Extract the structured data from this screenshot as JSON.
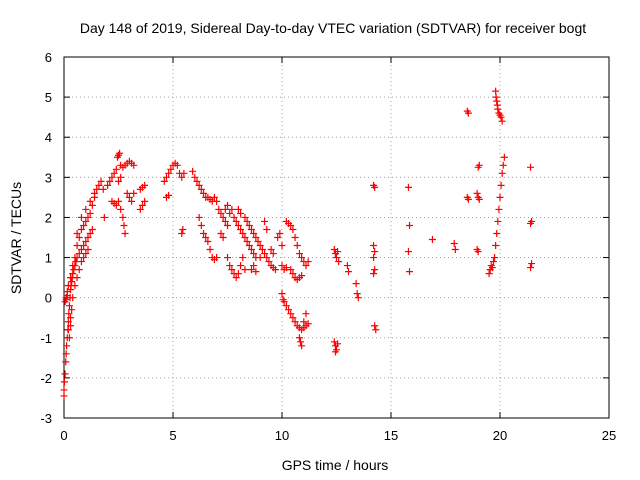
{
  "chart_data": {
    "type": "scatter",
    "title": "Day 148 of 2019, Sidereal Day-to-day VTEC variation (SDTVAR) for receiver bogt",
    "xlabel": "GPS time / hours",
    "ylabel": "SDTVAR / TECUs",
    "xlim": [
      0,
      25
    ],
    "ylim": [
      -3,
      6
    ],
    "xticks": [
      "0",
      "5",
      "10",
      "15",
      "20",
      "25"
    ],
    "yticks": [
      "-3",
      "-2",
      "-1",
      "0",
      "1",
      "2",
      "3",
      "4",
      "5",
      "6"
    ],
    "grid": true,
    "marker": "+",
    "colors": {
      "series": "#ff0000",
      "grid": "#a0a0a0",
      "axis": "#000000"
    },
    "series": [
      {
        "name": "SDTVAR",
        "trend_points": [
          [
            0.0,
            -2.45
          ],
          [
            0.0,
            -2.3
          ],
          [
            0.02,
            -2.1
          ],
          [
            0.05,
            -1.9
          ],
          [
            0.08,
            -1.6
          ],
          [
            0.1,
            -1.4
          ],
          [
            0.12,
            -1.2
          ],
          [
            0.15,
            -1.0
          ],
          [
            0.18,
            -0.8
          ],
          [
            0.2,
            -0.6
          ],
          [
            0.22,
            -0.4
          ],
          [
            0.25,
            -0.2
          ],
          [
            0.28,
            0.0
          ],
          [
            0.3,
            0.2
          ],
          [
            0.32,
            0.3
          ],
          [
            0.35,
            0.4
          ],
          [
            0.38,
            0.5
          ],
          [
            0.4,
            0.6
          ],
          [
            0.45,
            0.7
          ],
          [
            0.5,
            0.8
          ],
          [
            0.55,
            0.9
          ],
          [
            0.6,
            1.0
          ],
          [
            0.7,
            1.1
          ],
          [
            0.8,
            1.2
          ],
          [
            0.9,
            1.3
          ],
          [
            1.0,
            1.4
          ],
          [
            1.1,
            1.5
          ],
          [
            1.2,
            1.6
          ],
          [
            1.3,
            1.7
          ],
          [
            0.05,
            -0.1
          ],
          [
            0.1,
            0.0
          ],
          [
            0.15,
            0.15
          ],
          [
            0.2,
            0.3
          ],
          [
            0.3,
            0.5
          ],
          [
            0.4,
            0.8
          ],
          [
            0.5,
            1.0
          ],
          [
            0.6,
            1.3
          ],
          [
            0.7,
            1.5
          ],
          [
            0.8,
            1.7
          ],
          [
            0.9,
            1.8
          ],
          [
            1.0,
            1.9
          ],
          [
            1.1,
            2.0
          ],
          [
            1.2,
            2.1
          ],
          [
            1.3,
            2.3
          ],
          [
            1.4,
            2.5
          ],
          [
            1.5,
            2.7
          ],
          [
            1.6,
            2.8
          ],
          [
            0.3,
            -0.5
          ],
          [
            0.35,
            -0.3
          ],
          [
            0.4,
            0.0
          ],
          [
            0.5,
            0.3
          ],
          [
            0.6,
            0.5
          ],
          [
            0.7,
            0.7
          ],
          [
            0.8,
            0.9
          ],
          [
            0.9,
            1.0
          ],
          [
            1.0,
            1.1
          ],
          [
            1.1,
            1.2
          ],
          [
            0.2,
            -0.8
          ],
          [
            0.25,
            -1.0
          ],
          [
            0.3,
            -0.7
          ],
          [
            0.1,
            -0.05
          ],
          [
            0.15,
            0.05
          ],
          [
            0.6,
            1.6
          ],
          [
            0.8,
            2.0
          ],
          [
            1.0,
            2.2
          ],
          [
            1.2,
            2.4
          ],
          [
            1.4,
            2.6
          ],
          [
            1.7,
            2.9
          ],
          [
            1.8,
            2.7
          ],
          [
            1.85,
            2.0
          ],
          [
            2.0,
            2.8
          ],
          [
            2.1,
            2.9
          ],
          [
            2.2,
            3.0
          ],
          [
            2.3,
            3.1
          ],
          [
            2.4,
            3.2
          ],
          [
            2.45,
            3.5
          ],
          [
            2.5,
            3.55
          ],
          [
            2.55,
            3.6
          ],
          [
            2.6,
            3.3
          ],
          [
            2.7,
            3.25
          ],
          [
            2.8,
            3.3
          ],
          [
            2.9,
            3.35
          ],
          [
            3.0,
            3.4
          ],
          [
            3.1,
            3.35
          ],
          [
            3.2,
            3.3
          ],
          [
            2.2,
            2.4
          ],
          [
            2.3,
            2.35
          ],
          [
            2.4,
            2.3
          ],
          [
            2.5,
            2.4
          ],
          [
            2.6,
            2.2
          ],
          [
            2.7,
            2.0
          ],
          [
            2.75,
            1.8
          ],
          [
            2.8,
            1.6
          ],
          [
            2.5,
            2.9
          ],
          [
            2.6,
            3.0
          ],
          [
            2.9,
            2.6
          ],
          [
            3.0,
            2.5
          ],
          [
            3.1,
            2.4
          ],
          [
            3.2,
            2.6
          ],
          [
            3.5,
            2.7
          ],
          [
            3.6,
            2.75
          ],
          [
            3.7,
            2.8
          ],
          [
            3.6,
            2.3
          ],
          [
            3.7,
            2.4
          ],
          [
            3.5,
            2.2
          ],
          [
            4.6,
            2.9
          ],
          [
            4.7,
            3.0
          ],
          [
            4.8,
            3.1
          ],
          [
            4.9,
            3.2
          ],
          [
            5.0,
            3.3
          ],
          [
            5.1,
            3.35
          ],
          [
            5.2,
            3.3
          ],
          [
            4.7,
            2.5
          ],
          [
            4.8,
            2.55
          ],
          [
            5.3,
            3.1
          ],
          [
            5.4,
            3.0
          ],
          [
            5.5,
            3.1
          ],
          [
            5.4,
            1.6
          ],
          [
            5.45,
            1.7
          ],
          [
            5.9,
            3.15
          ],
          [
            6.0,
            3.0
          ],
          [
            6.1,
            2.9
          ],
          [
            6.2,
            2.8
          ],
          [
            6.3,
            2.7
          ],
          [
            6.4,
            2.6
          ],
          [
            6.5,
            2.5
          ],
          [
            6.6,
            2.5
          ],
          [
            6.7,
            2.45
          ],
          [
            6.8,
            2.4
          ],
          [
            6.9,
            2.5
          ],
          [
            7.0,
            2.4
          ],
          [
            7.1,
            2.2
          ],
          [
            7.2,
            2.1
          ],
          [
            7.3,
            2.0
          ],
          [
            7.4,
            1.9
          ],
          [
            7.5,
            1.8
          ],
          [
            7.6,
            2.1
          ],
          [
            7.7,
            2.2
          ],
          [
            7.8,
            2.0
          ],
          [
            7.9,
            1.9
          ],
          [
            8.0,
            1.8
          ],
          [
            8.1,
            1.7
          ],
          [
            8.2,
            1.6
          ],
          [
            8.3,
            1.5
          ],
          [
            8.4,
            1.4
          ],
          [
            8.5,
            1.3
          ],
          [
            8.6,
            1.2
          ],
          [
            8.7,
            1.1
          ],
          [
            8.8,
            1.0
          ],
          [
            6.2,
            2.0
          ],
          [
            6.3,
            1.8
          ],
          [
            6.4,
            1.6
          ],
          [
            6.5,
            1.5
          ],
          [
            6.6,
            1.4
          ],
          [
            6.7,
            1.2
          ],
          [
            6.8,
            1.0
          ],
          [
            6.9,
            0.95
          ],
          [
            7.0,
            1.0
          ],
          [
            7.2,
            1.6
          ],
          [
            7.3,
            1.5
          ],
          [
            7.5,
            1.0
          ],
          [
            7.6,
            0.8
          ],
          [
            7.7,
            0.7
          ],
          [
            7.8,
            0.6
          ],
          [
            7.9,
            0.5
          ],
          [
            8.0,
            0.6
          ],
          [
            8.1,
            0.8
          ],
          [
            8.2,
            1.0
          ],
          [
            8.3,
            0.7
          ],
          [
            7.4,
            2.2
          ],
          [
            7.5,
            2.3
          ],
          [
            8.0,
            2.2
          ],
          [
            8.1,
            2.1
          ],
          [
            8.3,
            2.0
          ],
          [
            8.4,
            1.9
          ],
          [
            8.5,
            1.8
          ],
          [
            8.6,
            1.7
          ],
          [
            8.7,
            1.6
          ],
          [
            8.8,
            1.5
          ],
          [
            8.9,
            1.4
          ],
          [
            9.0,
            1.3
          ],
          [
            9.1,
            1.2
          ],
          [
            9.2,
            1.1
          ],
          [
            9.3,
            1.0
          ],
          [
            9.4,
            0.9
          ],
          [
            9.5,
            0.8
          ],
          [
            9.6,
            0.75
          ],
          [
            9.7,
            0.7
          ],
          [
            8.6,
            0.7
          ],
          [
            8.7,
            0.8
          ],
          [
            8.8,
            0.65
          ],
          [
            9.0,
            1.0
          ],
          [
            9.2,
            1.9
          ],
          [
            9.3,
            1.7
          ],
          [
            9.5,
            1.2
          ],
          [
            9.6,
            1.1
          ],
          [
            9.8,
            1.5
          ],
          [
            9.9,
            1.6
          ],
          [
            10.0,
            1.3
          ],
          [
            10.2,
            1.9
          ],
          [
            10.3,
            1.85
          ],
          [
            10.4,
            1.8
          ],
          [
            10.5,
            1.7
          ],
          [
            10.6,
            1.5
          ],
          [
            10.7,
            1.3
          ],
          [
            10.8,
            1.1
          ],
          [
            10.9,
            1.0
          ],
          [
            11.0,
            0.9
          ],
          [
            11.1,
            0.8
          ],
          [
            11.2,
            0.9
          ],
          [
            10.0,
            0.8
          ],
          [
            10.1,
            0.7
          ],
          [
            10.2,
            0.75
          ],
          [
            10.4,
            0.7
          ],
          [
            10.5,
            0.6
          ],
          [
            10.6,
            0.5
          ],
          [
            10.7,
            0.45
          ],
          [
            10.8,
            0.5
          ],
          [
            10.9,
            0.55
          ],
          [
            10.0,
            0.1
          ],
          [
            10.05,
            -0.05
          ],
          [
            10.1,
            -0.1
          ],
          [
            10.2,
            -0.2
          ],
          [
            10.3,
            -0.3
          ],
          [
            10.4,
            -0.4
          ],
          [
            10.5,
            -0.5
          ],
          [
            10.6,
            -0.6
          ],
          [
            10.7,
            -0.7
          ],
          [
            10.8,
            -0.75
          ],
          [
            10.9,
            -0.8
          ],
          [
            11.0,
            -0.75
          ],
          [
            11.1,
            -0.7
          ],
          [
            11.2,
            -0.65
          ],
          [
            10.8,
            -1.0
          ],
          [
            10.85,
            -1.1
          ],
          [
            10.9,
            -1.2
          ],
          [
            11.0,
            -0.6
          ],
          [
            11.1,
            -0.4
          ],
          [
            12.4,
            1.2
          ],
          [
            12.45,
            1.1
          ],
          [
            12.5,
            1.0
          ],
          [
            12.6,
            0.9
          ],
          [
            12.55,
            1.15
          ],
          [
            12.4,
            -1.1
          ],
          [
            12.45,
            -1.2
          ],
          [
            12.5,
            -1.3
          ],
          [
            12.55,
            -1.15
          ],
          [
            12.45,
            -1.35
          ],
          [
            13.0,
            0.8
          ],
          [
            13.05,
            0.65
          ],
          [
            13.4,
            0.35
          ],
          [
            13.45,
            0.1
          ],
          [
            13.5,
            0.0
          ],
          [
            14.2,
            2.8
          ],
          [
            14.25,
            2.75
          ],
          [
            14.2,
            1.3
          ],
          [
            14.25,
            1.15
          ],
          [
            14.2,
            1.0
          ],
          [
            14.25,
            0.7
          ],
          [
            14.2,
            0.6
          ],
          [
            14.25,
            -0.7
          ],
          [
            14.3,
            -0.8
          ],
          [
            15.8,
            2.75
          ],
          [
            15.85,
            1.8
          ],
          [
            15.8,
            1.15
          ],
          [
            15.85,
            0.65
          ],
          [
            16.9,
            1.45
          ],
          [
            17.9,
            1.35
          ],
          [
            17.95,
            1.2
          ],
          [
            18.5,
            4.65
          ],
          [
            18.55,
            4.6
          ],
          [
            18.5,
            2.5
          ],
          [
            18.55,
            2.45
          ],
          [
            19.0,
            3.25
          ],
          [
            19.05,
            3.3
          ],
          [
            18.95,
            2.6
          ],
          [
            19.0,
            2.5
          ],
          [
            19.05,
            2.45
          ],
          [
            18.95,
            1.2
          ],
          [
            19.0,
            1.15
          ],
          [
            19.5,
            0.6
          ],
          [
            19.55,
            0.7
          ],
          [
            19.6,
            0.8
          ],
          [
            19.65,
            0.75
          ],
          [
            19.7,
            0.9
          ],
          [
            19.75,
            1.0
          ],
          [
            19.8,
            1.3
          ],
          [
            19.85,
            1.6
          ],
          [
            19.9,
            1.9
          ],
          [
            19.95,
            2.2
          ],
          [
            20.0,
            2.5
          ],
          [
            20.05,
            2.8
          ],
          [
            20.1,
            3.1
          ],
          [
            20.15,
            3.3
          ],
          [
            20.2,
            3.5
          ],
          [
            19.8,
            5.15
          ],
          [
            19.82,
            5.0
          ],
          [
            19.85,
            4.9
          ],
          [
            19.88,
            4.8
          ],
          [
            19.9,
            4.7
          ],
          [
            19.95,
            4.6
          ],
          [
            20.0,
            4.55
          ],
          [
            20.05,
            4.5
          ],
          [
            20.1,
            4.4
          ],
          [
            21.4,
            3.25
          ],
          [
            21.45,
            1.9
          ],
          [
            21.4,
            1.85
          ],
          [
            21.45,
            0.85
          ],
          [
            21.4,
            0.75
          ]
        ]
      }
    ]
  }
}
